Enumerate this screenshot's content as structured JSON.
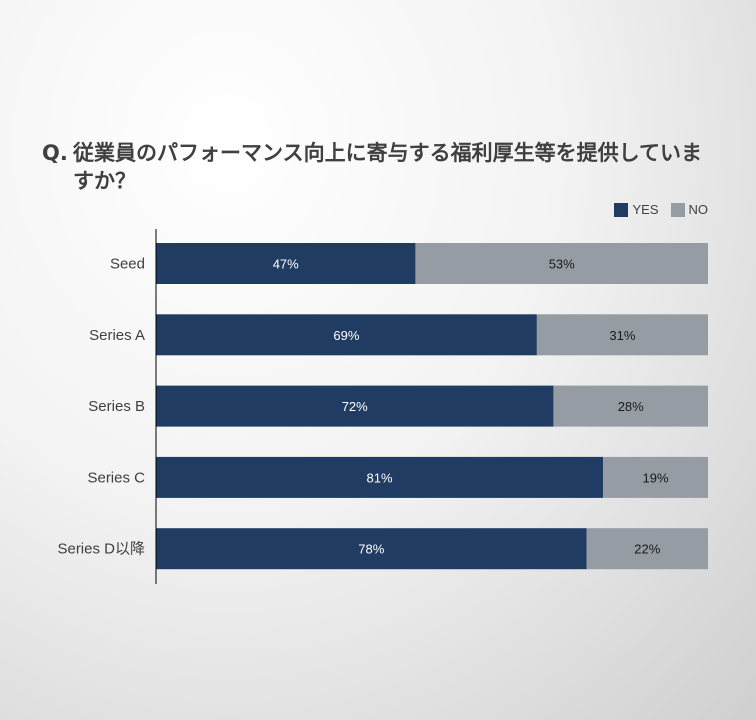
{
  "title": {
    "prefix": "Q.",
    "text": "従業員のパフォーマンス向上に寄与する福利厚生等を提供していますか？"
  },
  "colors": {
    "yes": "#203c62",
    "no": "#969ca3",
    "axis": "#000000",
    "label": "#404040"
  },
  "chart_data": {
    "type": "bar",
    "orientation": "horizontal",
    "stacked": "100%",
    "categories": [
      "Seed",
      "Series A",
      "Series B",
      "Series C",
      "Series D以降"
    ],
    "series": [
      {
        "name": "YES",
        "values": [
          47,
          69,
          72,
          81,
          78
        ],
        "labels": [
          "47%",
          "69%",
          "72%",
          "81%",
          "78%"
        ]
      },
      {
        "name": "NO",
        "values": [
          53,
          31,
          28,
          19,
          22
        ],
        "labels": [
          "53%",
          "31%",
          "28%",
          "19%",
          "22%"
        ]
      }
    ],
    "xlim": [
      0,
      100
    ],
    "legend_position": "top-right",
    "grid": false
  }
}
